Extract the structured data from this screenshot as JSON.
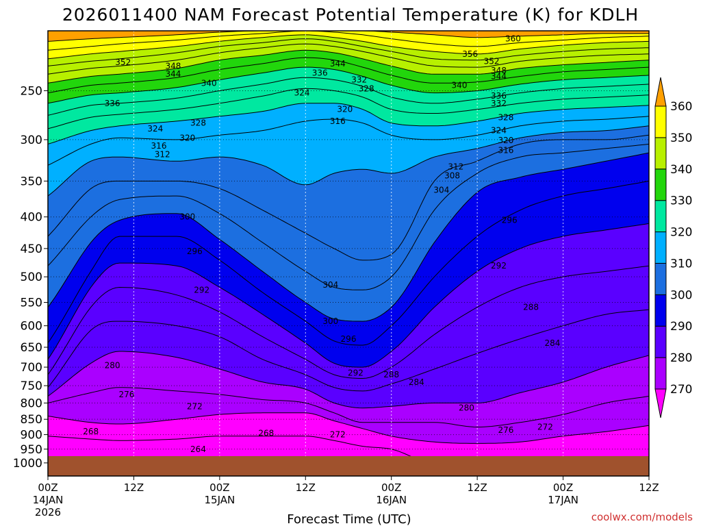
{
  "colors": {
    "ground": "#a0522d",
    "bands": [
      "#ff00ff",
      "#aa00ff",
      "#5a00ff",
      "#0000ee",
      "#1c6fe0",
      "#00b0ff",
      "#00e8a0",
      "#22d60c",
      "#b8f000",
      "#ffff00",
      "#ffa000",
      "#ffa000"
    ],
    "credit": "#d03030"
  },
  "chart_data": {
    "type": "time-height contour",
    "title": "2026011400 NAM Forecast Potential Temperature (K) for KDLH",
    "xlabel": "Forecast Time (UTC)",
    "ylabel": "",
    "credit": "coolwx.com/models",
    "x_ticks": [
      {
        "hour": 0,
        "label": "00Z",
        "sub1": "14JAN",
        "sub2": "2026"
      },
      {
        "hour": 12,
        "label": "12Z",
        "sub1": "",
        "sub2": ""
      },
      {
        "hour": 24,
        "label": "00Z",
        "sub1": "15JAN",
        "sub2": ""
      },
      {
        "hour": 36,
        "label": "12Z",
        "sub1": "",
        "sub2": ""
      },
      {
        "hour": 48,
        "label": "00Z",
        "sub1": "16JAN",
        "sub2": ""
      },
      {
        "hour": 60,
        "label": "12Z",
        "sub1": "",
        "sub2": ""
      },
      {
        "hour": 72,
        "label": "00Z",
        "sub1": "17JAN",
        "sub2": ""
      },
      {
        "hour": 84,
        "label": "12Z",
        "sub1": "",
        "sub2": ""
      }
    ],
    "xlim_hours": [
      0,
      84
    ],
    "y_scale": "log pressure",
    "ylim_hpa": [
      1050,
      200
    ],
    "y_ticks": [
      "250",
      "300",
      "350",
      "400",
      "450",
      "500",
      "550",
      "600",
      "650",
      "700",
      "750",
      "800",
      "850",
      "900",
      "950",
      "1000"
    ],
    "colorbar": {
      "levels": [
        270,
        280,
        290,
        300,
        310,
        320,
        330,
        340,
        350,
        360
      ],
      "labels": [
        "270",
        "280",
        "290",
        "300",
        "310",
        "320",
        "330",
        "340",
        "350",
        "360"
      ],
      "extend": "both"
    },
    "contour_interval_k": 4,
    "surface_pressure_hpa": 975,
    "profile_hours": [
      0,
      6,
      10,
      18,
      24,
      30,
      36,
      40,
      44,
      48,
      54,
      60,
      66,
      72,
      78,
      84
    ],
    "isentrope_pressure_hpa": {
      "264": [
        1000,
        1000,
        1000,
        1000,
        1000,
        1000,
        1000,
        1000,
        1000,
        1000,
        1000,
        1000,
        1000,
        1000,
        1000,
        1000
      ],
      "268": [
        905,
        915,
        920,
        915,
        905,
        905,
        905,
        920,
        940,
        950,
        1000,
        1000,
        1000,
        1000,
        1000,
        1000
      ],
      "272": [
        840,
        860,
        865,
        850,
        835,
        830,
        830,
        855,
        880,
        905,
        925,
        930,
        925,
        905,
        890,
        870
      ],
      "276": [
        800,
        770,
        755,
        765,
        775,
        790,
        800,
        830,
        860,
        860,
        860,
        875,
        860,
        835,
        800,
        780
      ],
      "280": [
        780,
        690,
        660,
        675,
        705,
        740,
        760,
        800,
        815,
        810,
        800,
        800,
        770,
        740,
        700,
        670
      ],
      "284": [
        755,
        610,
        590,
        600,
        625,
        680,
        720,
        755,
        765,
        745,
        705,
        665,
        630,
        600,
        575,
        565
      ],
      "288": [
        720,
        560,
        520,
        535,
        570,
        625,
        680,
        720,
        730,
        700,
        620,
        560,
        520,
        500,
        490,
        480
      ],
      "292": [
        680,
        520,
        475,
        480,
        520,
        575,
        640,
        690,
        700,
        660,
        560,
        490,
        450,
        430,
        420,
        410
      ],
      "296": [
        640,
        490,
        430,
        430,
        470,
        530,
        590,
        635,
        645,
        600,
        500,
        430,
        390,
        370,
        360,
        350
      ],
      "300": [
        560,
        440,
        405,
        395,
        435,
        490,
        550,
        585,
        590,
        560,
        440,
        365,
        345,
        335,
        325,
        315
      ],
      "304": [
        480,
        400,
        375,
        370,
        395,
        440,
        490,
        520,
        525,
        500,
        390,
        340,
        320,
        315,
        310,
        305
      ],
      "308": [
        430,
        360,
        350,
        350,
        360,
        390,
        425,
        450,
        470,
        460,
        350,
        325,
        305,
        300,
        300,
        295
      ],
      "312": [
        370,
        325,
        320,
        325,
        320,
        330,
        355,
        340,
        335,
        340,
        320,
        310,
        298,
        292,
        290,
        285
      ],
      "316": [
        330,
        305,
        298,
        300,
        295,
        290,
        280,
        278,
        282,
        295,
        300,
        295,
        285,
        280,
        278,
        275
      ],
      "320": [
        305,
        290,
        285,
        280,
        275,
        270,
        262,
        262,
        268,
        282,
        285,
        280,
        272,
        268,
        266,
        264
      ],
      "324": [
        288,
        276,
        273,
        268,
        262,
        255,
        248,
        250,
        256,
        268,
        272,
        268,
        262,
        258,
        256,
        254
      ],
      "328": [
        274,
        264,
        262,
        257,
        250,
        244,
        238,
        240,
        246,
        256,
        262,
        258,
        252,
        248,
        246,
        244
      ],
      "332": [
        262,
        254,
        252,
        247,
        240,
        234,
        229,
        231,
        237,
        245,
        252,
        250,
        244,
        240,
        238,
        236
      ],
      "336": [
        252,
        245,
        243,
        238,
        231,
        226,
        221,
        223,
        229,
        236,
        243,
        242,
        237,
        233,
        231,
        229
      ],
      "340": [
        243,
        237,
        235,
        230,
        223,
        219,
        215,
        217,
        222,
        228,
        235,
        235,
        230,
        227,
        225,
        223
      ],
      "344": [
        235,
        230,
        228,
        223,
        217,
        213,
        210,
        212,
        216,
        221,
        228,
        229,
        224,
        221,
        219,
        218
      ],
      "348": [
        228,
        224,
        222,
        217,
        212,
        209,
        206,
        208,
        212,
        216,
        222,
        223,
        219,
        216,
        214,
        213
      ],
      "352": [
        222,
        218,
        216,
        212,
        208,
        205,
        203,
        205,
        208,
        212,
        216,
        218,
        214,
        211,
        209,
        208
      ],
      "356": [
        215,
        212,
        210,
        207,
        204,
        202,
        200,
        201,
        203,
        206,
        210,
        212,
        209,
        207,
        205,
        204
      ],
      "360": [
        208,
        206,
        205,
        203,
        201,
        200,
        200,
        200,
        200,
        201,
        203,
        205,
        204,
        203,
        202,
        202
      ]
    },
    "contour_labels": [
      {
        "hour": 10.5,
        "hpa": 225,
        "text": "352"
      },
      {
        "hour": 17.5,
        "hpa": 228,
        "text": "348"
      },
      {
        "hour": 17.5,
        "hpa": 235,
        "text": "344"
      },
      {
        "hour": 22.5,
        "hpa": 243,
        "text": "340"
      },
      {
        "hour": 9,
        "hpa": 262,
        "text": "336"
      },
      {
        "hour": 21,
        "hpa": 282,
        "text": "328"
      },
      {
        "hour": 15,
        "hpa": 288,
        "text": "324"
      },
      {
        "hour": 19.5,
        "hpa": 298,
        "text": "320"
      },
      {
        "hour": 15.5,
        "hpa": 307,
        "text": "316"
      },
      {
        "hour": 16,
        "hpa": 317,
        "text": "312"
      },
      {
        "hour": 19.5,
        "hpa": 400,
        "text": "300"
      },
      {
        "hour": 20.5,
        "hpa": 455,
        "text": "296"
      },
      {
        "hour": 21.5,
        "hpa": 525,
        "text": "292"
      },
      {
        "hour": 9,
        "hpa": 695,
        "text": "280"
      },
      {
        "hour": 11,
        "hpa": 775,
        "text": "276"
      },
      {
        "hour": 20.5,
        "hpa": 810,
        "text": "272"
      },
      {
        "hour": 6,
        "hpa": 890,
        "text": "268"
      },
      {
        "hour": 21,
        "hpa": 950,
        "text": "264"
      },
      {
        "hour": 30.5,
        "hpa": 895,
        "text": "268"
      },
      {
        "hour": 40.5,
        "hpa": 900,
        "text": "272"
      },
      {
        "hour": 39.5,
        "hpa": 515,
        "text": "304"
      },
      {
        "hour": 39.5,
        "hpa": 590,
        "text": "300"
      },
      {
        "hour": 42,
        "hpa": 630,
        "text": "296"
      },
      {
        "hour": 43,
        "hpa": 715,
        "text": "292"
      },
      {
        "hour": 48,
        "hpa": 720,
        "text": "288"
      },
      {
        "hour": 51.5,
        "hpa": 740,
        "text": "284"
      },
      {
        "hour": 40.5,
        "hpa": 226,
        "text": "344"
      },
      {
        "hour": 38,
        "hpa": 234,
        "text": "336"
      },
      {
        "hour": 43.5,
        "hpa": 240,
        "text": "332"
      },
      {
        "hour": 44.5,
        "hpa": 248,
        "text": "328"
      },
      {
        "hour": 35.5,
        "hpa": 252,
        "text": "324"
      },
      {
        "hour": 41.5,
        "hpa": 268,
        "text": "320"
      },
      {
        "hour": 40.5,
        "hpa": 280,
        "text": "316"
      },
      {
        "hour": 65,
        "hpa": 206,
        "text": "360"
      },
      {
        "hour": 59,
        "hpa": 218,
        "text": "356"
      },
      {
        "hour": 62,
        "hpa": 224,
        "text": "352"
      },
      {
        "hour": 63,
        "hpa": 232,
        "text": "348"
      },
      {
        "hour": 63,
        "hpa": 237,
        "text": "344"
      },
      {
        "hour": 57.5,
        "hpa": 245,
        "text": "340"
      },
      {
        "hour": 63,
        "hpa": 255,
        "text": "336"
      },
      {
        "hour": 63,
        "hpa": 262,
        "text": "332"
      },
      {
        "hour": 64,
        "hpa": 276,
        "text": "328"
      },
      {
        "hour": 63,
        "hpa": 290,
        "text": "324"
      },
      {
        "hour": 64,
        "hpa": 301,
        "text": "320"
      },
      {
        "hour": 64,
        "hpa": 312,
        "text": "316"
      },
      {
        "hour": 57,
        "hpa": 332,
        "text": "312"
      },
      {
        "hour": 56.5,
        "hpa": 343,
        "text": "308"
      },
      {
        "hour": 55,
        "hpa": 362,
        "text": "304"
      },
      {
        "hour": 64.5,
        "hpa": 405,
        "text": "296"
      },
      {
        "hour": 63,
        "hpa": 480,
        "text": "292"
      },
      {
        "hour": 67.5,
        "hpa": 560,
        "text": "288"
      },
      {
        "hour": 70.5,
        "hpa": 640,
        "text": "284"
      },
      {
        "hour": 58.5,
        "hpa": 815,
        "text": "280"
      },
      {
        "hour": 64,
        "hpa": 885,
        "text": "276"
      },
      {
        "hour": 69.5,
        "hpa": 875,
        "text": "272"
      }
    ]
  }
}
